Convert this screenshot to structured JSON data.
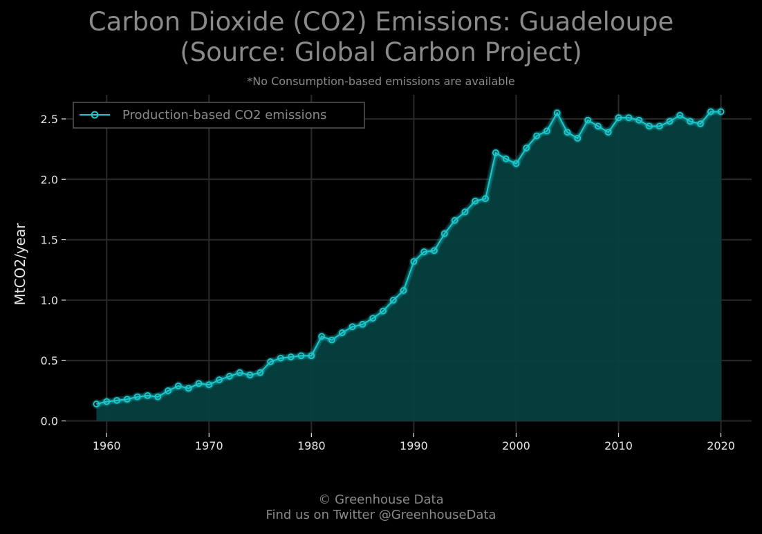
{
  "title_line1": "Carbon Dioxide (CO2) Emissions: Guadeloupe",
  "title_line2": "(Source: Global Carbon Project)",
  "subtitle": "*No Consumption-based emissions are available",
  "footer_line1": "© Greenhouse Data",
  "footer_line2": "Find us on Twitter @GreenhouseData",
  "colors": {
    "background": "#000000",
    "line": "#1ec8cc",
    "fill": "#05403f",
    "grid": "#2a2a2a",
    "text": "#e6e6e6",
    "muted_text": "#8a8a8a"
  },
  "chart_data": {
    "type": "area",
    "title": "Carbon Dioxide (CO2) Emissions: Guadeloupe (Source: Global Carbon Project)",
    "xlabel": "",
    "ylabel": "MtCO2/year",
    "xlim": [
      1956,
      2023
    ],
    "ylim": [
      -0.1,
      2.7
    ],
    "x_ticks": [
      1960,
      1970,
      1980,
      1990,
      2000,
      2010,
      2020
    ],
    "y_ticks": [
      "0.0",
      "0.5",
      "1.0",
      "1.5",
      "2.0",
      "2.5"
    ],
    "grid": true,
    "legend_position": "top-left",
    "x": [
      1959,
      1960,
      1961,
      1962,
      1963,
      1964,
      1965,
      1966,
      1967,
      1968,
      1969,
      1970,
      1971,
      1972,
      1973,
      1974,
      1975,
      1976,
      1977,
      1978,
      1979,
      1980,
      1981,
      1982,
      1983,
      1984,
      1985,
      1986,
      1987,
      1988,
      1989,
      1990,
      1991,
      1992,
      1993,
      1994,
      1995,
      1996,
      1997,
      1998,
      1999,
      2000,
      2001,
      2002,
      2003,
      2004,
      2005,
      2006,
      2007,
      2008,
      2009,
      2010,
      2011,
      2012,
      2013,
      2014,
      2015,
      2016,
      2017,
      2018,
      2019,
      2020
    ],
    "series": [
      {
        "name": "Production-based CO2 emissions",
        "values": [
          0.14,
          0.16,
          0.17,
          0.18,
          0.2,
          0.21,
          0.2,
          0.25,
          0.29,
          0.27,
          0.31,
          0.3,
          0.34,
          0.37,
          0.4,
          0.38,
          0.4,
          0.49,
          0.52,
          0.53,
          0.54,
          0.54,
          0.7,
          0.67,
          0.73,
          0.78,
          0.8,
          0.85,
          0.91,
          1.0,
          1.08,
          1.32,
          1.4,
          1.41,
          1.55,
          1.66,
          1.73,
          1.82,
          1.84,
          2.22,
          2.17,
          2.13,
          2.26,
          2.36,
          2.4,
          2.55,
          2.39,
          2.34,
          2.49,
          2.44,
          2.39,
          2.51,
          2.51,
          2.49,
          2.44,
          2.44,
          2.48,
          2.53,
          2.48,
          2.46,
          2.56,
          2.56
        ]
      }
    ]
  }
}
